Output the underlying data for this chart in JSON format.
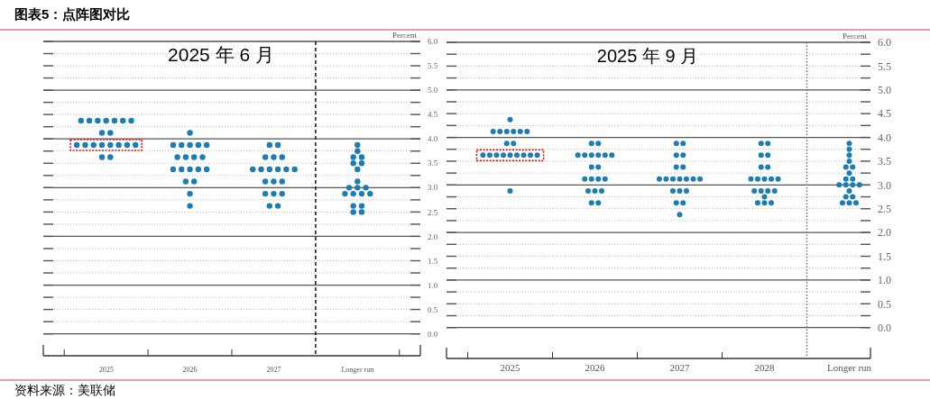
{
  "chart_data": [
    {
      "type": "scatter",
      "title": "2025 年 6 月",
      "ylabel": "Percent",
      "series": [
        {
          "color": "#1b7db4",
          "x": [
            2024.7,
            2024.8,
            2024.9,
            2025,
            2025.1,
            2025.2,
            2025.3,
            2024.95,
            2025.05,
            2024.65,
            2024.75,
            2024.85,
            2024.95,
            2025.05,
            2025.15,
            2025.25,
            2025.35,
            2024.95,
            2025.05,
            2026,
            2025.8,
            2025.9,
            2026,
            2026.1,
            2026.2,
            2025.85,
            2025.95,
            2026.05,
            2026.15,
            2025.8,
            2025.9,
            2026,
            2026.1,
            2026.2,
            2025.95,
            2026.05,
            2026,
            2026,
            2026.95,
            2027.05,
            2026.9,
            2027,
            2027.1,
            2026.75,
            2026.85,
            2026.95,
            2027.05,
            2027.15,
            2027.25,
            2026.9,
            2027,
            2027.1,
            2026.9,
            2027,
            2027.1,
            2026.95,
            2027.05,
            2028,
            2028,
            2027.95,
            2028.05,
            2027.95,
            2028.05,
            2028,
            2028,
            2027.9,
            2028,
            2028.1,
            2027.85,
            2027.95,
            2028.05,
            2028.15,
            2027.95,
            2028.05,
            2027.95,
            2028.05
          ],
          "values": [
            4.375,
            4.375,
            4.375,
            4.375,
            4.375,
            4.375,
            4.375,
            4.125,
            4.125,
            3.875,
            3.875,
            3.875,
            3.875,
            3.875,
            3.875,
            3.875,
            3.875,
            3.625,
            3.625,
            4.125,
            3.875,
            3.875,
            3.875,
            3.875,
            3.875,
            3.625,
            3.625,
            3.625,
            3.625,
            3.375,
            3.375,
            3.375,
            3.375,
            3.375,
            3.125,
            3.125,
            2.875,
            2.625,
            3.875,
            3.875,
            3.625,
            3.625,
            3.625,
            3.375,
            3.375,
            3.375,
            3.375,
            3.375,
            3.375,
            3.125,
            3.125,
            3.125,
            2.875,
            2.875,
            2.875,
            2.625,
            2.625,
            3.875,
            3.75,
            3.625,
            3.625,
            3.5,
            3.5,
            3.375,
            3.125,
            3.0,
            3.0,
            3.0,
            2.875,
            2.875,
            2.875,
            2.875,
            2.625,
            2.625,
            2.5,
            2.5
          ]
        }
      ],
      "marker": "circle",
      "xlim": [
        2024.25,
        2028.75
      ],
      "xticks": [
        {
          "value": 2024.5,
          "label": null
        },
        {
          "value": 2025,
          "label": "2025"
        },
        {
          "value": 2025.5,
          "label": null
        },
        {
          "value": 2026,
          "label": "2026"
        },
        {
          "value": 2026.5,
          "label": null
        },
        {
          "value": 2027,
          "label": "2027"
        },
        {
          "value": 2028,
          "label": "Longer run"
        },
        {
          "value": 2028.5,
          "label": null
        }
      ],
      "ylim": [
        -0.45,
        6
      ],
      "yticks": [
        {
          "value": 0,
          "label": "0.0"
        },
        {
          "value": 0.25,
          "label": null
        },
        {
          "value": 0.5,
          "label": "0.5"
        },
        {
          "value": 0.75,
          "label": null
        },
        {
          "value": 1,
          "label": "1.0"
        },
        {
          "value": 1.25,
          "label": null
        },
        {
          "value": 1.5,
          "label": "1.5"
        },
        {
          "value": 1.75,
          "label": null
        },
        {
          "value": 2,
          "label": "2.0"
        },
        {
          "value": 2.25,
          "label": null
        },
        {
          "value": 2.5,
          "label": "2.5"
        },
        {
          "value": 2.75,
          "label": null
        },
        {
          "value": 3,
          "label": "3.0"
        },
        {
          "value": 3.25,
          "label": null
        },
        {
          "value": 3.5,
          "label": "3.5"
        },
        {
          "value": 3.75,
          "label": null
        },
        {
          "value": 4,
          "label": "4.0"
        },
        {
          "value": 4.25,
          "label": null
        },
        {
          "value": 4.5,
          "label": "4.5"
        },
        {
          "value": 4.75,
          "label": null
        },
        {
          "value": 5,
          "label": "5.0"
        },
        {
          "value": 5.25,
          "label": null
        },
        {
          "value": 5.5,
          "label": "5.5"
        },
        {
          "value": 5.75,
          "label": null
        },
        {
          "value": 6,
          "label": "6.0"
        }
      ],
      "grid": "y",
      "ref_lines": [
        {
          "axis": "x",
          "value": 2027.5,
          "color": "#222222",
          "line_style": "dashed"
        }
      ],
      "annotations": [
        "图表5：点阵图对比",
        "资料来源：美联储"
      ]
    },
    {
      "type": "scatter",
      "title": "2025 年 9 月",
      "ylabel": "Percent",
      "series": [
        {
          "color": "#1b7db4",
          "x": [
            2025,
            2024.8,
            2024.88,
            2024.96,
            2025.04,
            2025.12,
            2025.2,
            2024.96,
            2025.04,
            2024.68,
            2024.76,
            2024.84,
            2024.92,
            2025,
            2025.08,
            2025.16,
            2025.24,
            2025.32,
            2025,
            2025.96,
            2026.04,
            2025.8,
            2025.88,
            2025.96,
            2026.04,
            2026.12,
            2026.2,
            2025.96,
            2026.04,
            2025.88,
            2025.96,
            2026.04,
            2026.12,
            2025.92,
            2026,
            2026.08,
            2025.96,
            2026.04,
            2026.96,
            2027.04,
            2026.96,
            2027.04,
            2026.96,
            2027.04,
            2026.76,
            2026.84,
            2026.92,
            2027,
            2027.08,
            2027.16,
            2027.24,
            2026.92,
            2027,
            2027.08,
            2026.96,
            2027.04,
            2027,
            2027.96,
            2028.04,
            2027.96,
            2028.04,
            2027.96,
            2028.04,
            2027.84,
            2027.92,
            2028,
            2028.08,
            2028.16,
            2027.88,
            2027.96,
            2028.04,
            2028.12,
            2028,
            2027.92,
            2028,
            2028.08,
            2029,
            2029,
            2029,
            2029,
            2028.96,
            2029.04,
            2029,
            2028.96,
            2029.04,
            2028.88,
            2028.96,
            2029.04,
            2029.12,
            2029,
            2028.96,
            2029.04,
            2028.92,
            2029,
            2029.08
          ],
          "values": [
            4.375,
            4.125,
            4.125,
            4.125,
            4.125,
            4.125,
            4.125,
            3.875,
            3.875,
            3.625,
            3.625,
            3.625,
            3.625,
            3.625,
            3.625,
            3.625,
            3.625,
            3.625,
            2.875,
            3.875,
            3.875,
            3.625,
            3.625,
            3.625,
            3.625,
            3.625,
            3.625,
            3.375,
            3.375,
            3.125,
            3.125,
            3.125,
            3.125,
            2.875,
            2.875,
            2.875,
            2.625,
            2.625,
            3.875,
            3.875,
            3.625,
            3.625,
            3.375,
            3.375,
            3.125,
            3.125,
            3.125,
            3.125,
            3.125,
            3.125,
            3.125,
            2.875,
            2.875,
            2.875,
            2.625,
            2.625,
            2.375,
            3.875,
            3.875,
            3.625,
            3.625,
            3.375,
            3.375,
            3.125,
            3.125,
            3.125,
            3.125,
            3.125,
            2.875,
            2.875,
            2.875,
            2.875,
            2.75,
            2.625,
            2.625,
            2.625,
            3.875,
            3.75,
            3.625,
            3.5,
            3.375,
            3.375,
            3.25,
            3.125,
            3.125,
            3.0,
            3.0,
            3.0,
            3.0,
            2.875,
            2.75,
            2.75,
            2.625,
            2.625,
            2.625
          ]
        }
      ],
      "marker": "circle",
      "xlim": [
        2024.25,
        2029.25
      ],
      "xticks": [
        {
          "value": 2024.5,
          "label": null
        },
        {
          "value": 2025,
          "label": "2025"
        },
        {
          "value": 2025.5,
          "label": null
        },
        {
          "value": 2026,
          "label": "2026"
        },
        {
          "value": 2026.5,
          "label": null
        },
        {
          "value": 2027,
          "label": "2027"
        },
        {
          "value": 2027.5,
          "label": null
        },
        {
          "value": 2028,
          "label": "2028"
        },
        {
          "value": 2029,
          "label": "Longer run"
        }
      ],
      "ylim": [
        -0.65,
        6
      ],
      "yticks": [
        {
          "value": 0,
          "label": "0.0"
        },
        {
          "value": 0.25,
          "label": null
        },
        {
          "value": 0.5,
          "label": "0.5"
        },
        {
          "value": 0.75,
          "label": null
        },
        {
          "value": 1,
          "label": "1.0"
        },
        {
          "value": 1.25,
          "label": null
        },
        {
          "value": 1.5,
          "label": "1.5"
        },
        {
          "value": 1.75,
          "label": null
        },
        {
          "value": 2,
          "label": "2.0"
        },
        {
          "value": 2.25,
          "label": null
        },
        {
          "value": 2.5,
          "label": "2.5"
        },
        {
          "value": 2.75,
          "label": null
        },
        {
          "value": 3,
          "label": "3.0"
        },
        {
          "value": 3.25,
          "label": null
        },
        {
          "value": 3.5,
          "label": "3.5"
        },
        {
          "value": 3.75,
          "label": null
        },
        {
          "value": 4,
          "label": "4.0"
        },
        {
          "value": 4.25,
          "label": null
        },
        {
          "value": 4.5,
          "label": "4.5"
        },
        {
          "value": 4.75,
          "label": null
        },
        {
          "value": 5,
          "label": "5.0"
        },
        {
          "value": 5.25,
          "label": null
        },
        {
          "value": 5.5,
          "label": "5.5"
        },
        {
          "value": 5.75,
          "label": null
        },
        {
          "value": 6,
          "label": "6.0"
        }
      ],
      "grid": "y",
      "ref_lines": [
        {
          "axis": "x",
          "value": 2028.5,
          "color": "#777777",
          "line_style": "dotted"
        }
      ]
    }
  ]
}
